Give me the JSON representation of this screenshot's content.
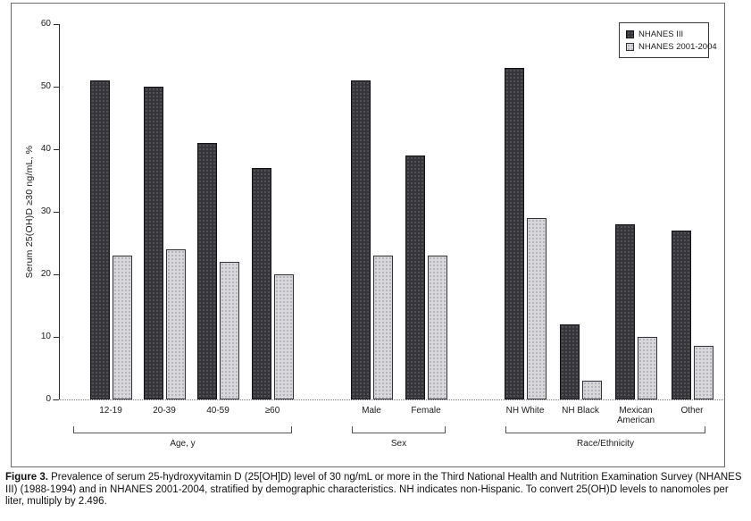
{
  "figure": {
    "caption_label": "Figure 3.",
    "caption_text": " Prevalence of serum 25-hydroxyvitamin D (25[OH]D) level of 30 ng/mL or more in the Third National Health and Nutrition Examination Survey (NHANES III) (1988-1994) and in NHANES 2001-2004, stratified by demographic characteristics. NH indicates non-Hispanic. To convert 25(OH)D levels to nanomoles per liter, multiply by 2.496."
  },
  "chart_data": {
    "type": "bar",
    "title": "",
    "xlabel": "",
    "ylabel": "Serum 25(OH)D ≥30 ng/mL, %",
    "ylim": [
      0,
      60
    ],
    "yticks": [
      0,
      10,
      20,
      30,
      40,
      50,
      60
    ],
    "grid": false,
    "legend_position": "top-right",
    "categories": [
      "12-19",
      "20-39",
      "40-59",
      "≥60",
      "Male",
      "Female",
      "NH White",
      "NH Black",
      "Mexican American",
      "Other"
    ],
    "groups": [
      {
        "label": "Age, y",
        "category_indices": [
          0,
          1,
          2,
          3
        ]
      },
      {
        "label": "Sex",
        "category_indices": [
          4,
          5
        ]
      },
      {
        "label": "Race/Ethnicity",
        "category_indices": [
          6,
          7,
          8,
          9
        ]
      }
    ],
    "series": [
      {
        "name": "NHANES III",
        "color": "#35353a",
        "values": [
          51,
          50,
          41,
          37,
          51,
          39,
          53,
          12,
          28,
          27
        ]
      },
      {
        "name": "NHANES 2001-2004",
        "color": "#d8d8da",
        "values": [
          23,
          24,
          22,
          20,
          23,
          23,
          29,
          3,
          10,
          8.5
        ]
      }
    ]
  }
}
